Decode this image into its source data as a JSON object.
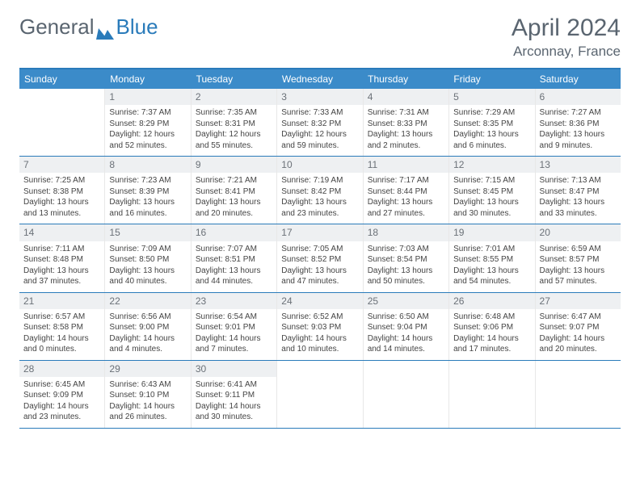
{
  "logo": {
    "text1": "General",
    "text2": "Blue"
  },
  "title": "April 2024",
  "location": "Arconnay, France",
  "colors": {
    "header_bg": "#3b8bc9",
    "border": "#2a7bba",
    "text": "#5a6570",
    "daynum_bg": "#eef0f2"
  },
  "weekdays": [
    "Sunday",
    "Monday",
    "Tuesday",
    "Wednesday",
    "Thursday",
    "Friday",
    "Saturday"
  ],
  "weeks": [
    [
      {
        "n": "",
        "empty": true
      },
      {
        "n": "1",
        "sr": "Sunrise: 7:37 AM",
        "ss": "Sunset: 8:29 PM",
        "dl": "Daylight: 12 hours and 52 minutes."
      },
      {
        "n": "2",
        "sr": "Sunrise: 7:35 AM",
        "ss": "Sunset: 8:31 PM",
        "dl": "Daylight: 12 hours and 55 minutes."
      },
      {
        "n": "3",
        "sr": "Sunrise: 7:33 AM",
        "ss": "Sunset: 8:32 PM",
        "dl": "Daylight: 12 hours and 59 minutes."
      },
      {
        "n": "4",
        "sr": "Sunrise: 7:31 AM",
        "ss": "Sunset: 8:33 PM",
        "dl": "Daylight: 13 hours and 2 minutes."
      },
      {
        "n": "5",
        "sr": "Sunrise: 7:29 AM",
        "ss": "Sunset: 8:35 PM",
        "dl": "Daylight: 13 hours and 6 minutes."
      },
      {
        "n": "6",
        "sr": "Sunrise: 7:27 AM",
        "ss": "Sunset: 8:36 PM",
        "dl": "Daylight: 13 hours and 9 minutes."
      }
    ],
    [
      {
        "n": "7",
        "sr": "Sunrise: 7:25 AM",
        "ss": "Sunset: 8:38 PM",
        "dl": "Daylight: 13 hours and 13 minutes."
      },
      {
        "n": "8",
        "sr": "Sunrise: 7:23 AM",
        "ss": "Sunset: 8:39 PM",
        "dl": "Daylight: 13 hours and 16 minutes."
      },
      {
        "n": "9",
        "sr": "Sunrise: 7:21 AM",
        "ss": "Sunset: 8:41 PM",
        "dl": "Daylight: 13 hours and 20 minutes."
      },
      {
        "n": "10",
        "sr": "Sunrise: 7:19 AM",
        "ss": "Sunset: 8:42 PM",
        "dl": "Daylight: 13 hours and 23 minutes."
      },
      {
        "n": "11",
        "sr": "Sunrise: 7:17 AM",
        "ss": "Sunset: 8:44 PM",
        "dl": "Daylight: 13 hours and 27 minutes."
      },
      {
        "n": "12",
        "sr": "Sunrise: 7:15 AM",
        "ss": "Sunset: 8:45 PM",
        "dl": "Daylight: 13 hours and 30 minutes."
      },
      {
        "n": "13",
        "sr": "Sunrise: 7:13 AM",
        "ss": "Sunset: 8:47 PM",
        "dl": "Daylight: 13 hours and 33 minutes."
      }
    ],
    [
      {
        "n": "14",
        "sr": "Sunrise: 7:11 AM",
        "ss": "Sunset: 8:48 PM",
        "dl": "Daylight: 13 hours and 37 minutes."
      },
      {
        "n": "15",
        "sr": "Sunrise: 7:09 AM",
        "ss": "Sunset: 8:50 PM",
        "dl": "Daylight: 13 hours and 40 minutes."
      },
      {
        "n": "16",
        "sr": "Sunrise: 7:07 AM",
        "ss": "Sunset: 8:51 PM",
        "dl": "Daylight: 13 hours and 44 minutes."
      },
      {
        "n": "17",
        "sr": "Sunrise: 7:05 AM",
        "ss": "Sunset: 8:52 PM",
        "dl": "Daylight: 13 hours and 47 minutes."
      },
      {
        "n": "18",
        "sr": "Sunrise: 7:03 AM",
        "ss": "Sunset: 8:54 PM",
        "dl": "Daylight: 13 hours and 50 minutes."
      },
      {
        "n": "19",
        "sr": "Sunrise: 7:01 AM",
        "ss": "Sunset: 8:55 PM",
        "dl": "Daylight: 13 hours and 54 minutes."
      },
      {
        "n": "20",
        "sr": "Sunrise: 6:59 AM",
        "ss": "Sunset: 8:57 PM",
        "dl": "Daylight: 13 hours and 57 minutes."
      }
    ],
    [
      {
        "n": "21",
        "sr": "Sunrise: 6:57 AM",
        "ss": "Sunset: 8:58 PM",
        "dl": "Daylight: 14 hours and 0 minutes."
      },
      {
        "n": "22",
        "sr": "Sunrise: 6:56 AM",
        "ss": "Sunset: 9:00 PM",
        "dl": "Daylight: 14 hours and 4 minutes."
      },
      {
        "n": "23",
        "sr": "Sunrise: 6:54 AM",
        "ss": "Sunset: 9:01 PM",
        "dl": "Daylight: 14 hours and 7 minutes."
      },
      {
        "n": "24",
        "sr": "Sunrise: 6:52 AM",
        "ss": "Sunset: 9:03 PM",
        "dl": "Daylight: 14 hours and 10 minutes."
      },
      {
        "n": "25",
        "sr": "Sunrise: 6:50 AM",
        "ss": "Sunset: 9:04 PM",
        "dl": "Daylight: 14 hours and 14 minutes."
      },
      {
        "n": "26",
        "sr": "Sunrise: 6:48 AM",
        "ss": "Sunset: 9:06 PM",
        "dl": "Daylight: 14 hours and 17 minutes."
      },
      {
        "n": "27",
        "sr": "Sunrise: 6:47 AM",
        "ss": "Sunset: 9:07 PM",
        "dl": "Daylight: 14 hours and 20 minutes."
      }
    ],
    [
      {
        "n": "28",
        "sr": "Sunrise: 6:45 AM",
        "ss": "Sunset: 9:09 PM",
        "dl": "Daylight: 14 hours and 23 minutes."
      },
      {
        "n": "29",
        "sr": "Sunrise: 6:43 AM",
        "ss": "Sunset: 9:10 PM",
        "dl": "Daylight: 14 hours and 26 minutes."
      },
      {
        "n": "30",
        "sr": "Sunrise: 6:41 AM",
        "ss": "Sunset: 9:11 PM",
        "dl": "Daylight: 14 hours and 30 minutes."
      },
      {
        "n": "",
        "empty": true
      },
      {
        "n": "",
        "empty": true
      },
      {
        "n": "",
        "empty": true
      },
      {
        "n": "",
        "empty": true
      }
    ]
  ]
}
